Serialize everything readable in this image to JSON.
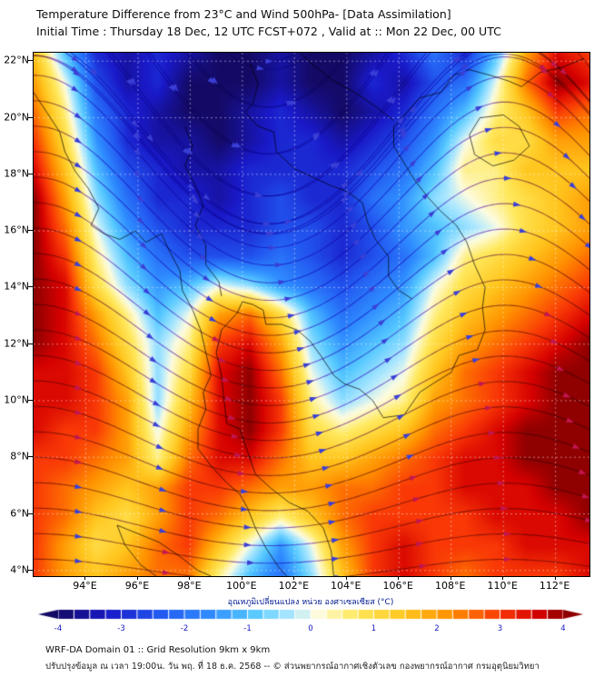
{
  "header": {
    "title": "Temperature Difference from 23°C and Wind 500hPa- [Data Assimilation]",
    "subtitle": "Initial Time : Thursday 18 Dec, 12 UTC FCST+072 , Valid at ::  Mon 22 Dec, 00 UTC"
  },
  "map": {
    "extent": {
      "lon_min": 92.0,
      "lon_max": 113.3,
      "lat_min": 3.8,
      "lat_max": 22.3
    },
    "graticule_step_deg": 2,
    "lat_ticks": [
      {
        "value": 22,
        "label": "22°N"
      },
      {
        "value": 20,
        "label": "20°N"
      },
      {
        "value": 18,
        "label": "18°N"
      },
      {
        "value": 16,
        "label": "16°N"
      },
      {
        "value": 14,
        "label": "14°N"
      },
      {
        "value": 12,
        "label": "12°N"
      },
      {
        "value": 10,
        "label": "10°N"
      },
      {
        "value": 8,
        "label": "8°N"
      },
      {
        "value": 6,
        "label": "6°N"
      },
      {
        "value": 4,
        "label": "4°N"
      }
    ],
    "lon_ticks": [
      {
        "value": 94,
        "label": "94°E"
      },
      {
        "value": 96,
        "label": "96°E"
      },
      {
        "value": 98,
        "label": "98°E"
      },
      {
        "value": 100,
        "label": "100°E"
      },
      {
        "value": 102,
        "label": "102°E"
      },
      {
        "value": 104,
        "label": "104°E"
      },
      {
        "value": 106,
        "label": "106°E"
      },
      {
        "value": 108,
        "label": "108°E"
      },
      {
        "value": 110,
        "label": "110°E"
      },
      {
        "value": 112,
        "label": "112°E"
      }
    ]
  },
  "chart_data": {
    "type": "heatmap",
    "title": "Temperature difference from 23°C (shaded) with 500 hPa wind streamlines",
    "units": "°C",
    "value_range": [
      -4,
      4
    ],
    "grid_lon_range": [
      92.0,
      113.3
    ],
    "grid_lat_range_north_to_south": [
      22.3,
      3.8
    ],
    "temperature_grid_north_to_south": [
      [
        1.5,
        -1.0,
        -3.0,
        -3.5,
        -3.0,
        -3.5,
        -4.0,
        -4.0,
        -3.5,
        -4.0,
        -4.0,
        -3.5,
        -3.0,
        -2.0,
        -3.0,
        -1.0,
        2.0,
        3.5,
        3.0
      ],
      [
        2.0,
        0.0,
        -2.5,
        -3.5,
        -3.0,
        -4.0,
        -4.0,
        -4.0,
        -3.5,
        -4.0,
        -4.0,
        -3.0,
        -3.5,
        -2.5,
        -2.0,
        0.0,
        2.5,
        4.0,
        3.5
      ],
      [
        2.5,
        0.5,
        -2.0,
        -3.0,
        -3.5,
        -4.0,
        -4.0,
        -3.5,
        -3.0,
        -3.5,
        -4.0,
        -3.5,
        -3.0,
        -2.0,
        -1.0,
        0.5,
        1.5,
        3.0,
        2.5
      ],
      [
        3.0,
        1.0,
        -1.5,
        -3.0,
        -3.5,
        -3.5,
        -4.0,
        -3.5,
        -3.0,
        -3.0,
        -3.5,
        -3.0,
        -2.5,
        -1.5,
        0.0,
        1.0,
        1.0,
        2.0,
        2.0
      ],
      [
        3.5,
        1.5,
        -1.0,
        -2.5,
        -3.0,
        -3.5,
        -3.5,
        -3.0,
        -3.0,
        -3.0,
        -3.0,
        -2.5,
        -2.0,
        -1.0,
        0.5,
        0.5,
        1.5,
        1.5,
        1.5
      ],
      [
        4.0,
        2.0,
        -0.5,
        -2.0,
        -3.0,
        -3.0,
        -3.5,
        -3.0,
        -2.5,
        -3.0,
        -3.0,
        -2.0,
        -1.5,
        -0.5,
        0.0,
        0.5,
        1.0,
        1.5,
        2.0
      ],
      [
        4.0,
        2.5,
        0.0,
        -1.5,
        -2.5,
        -3.0,
        -3.0,
        -3.0,
        -2.5,
        -2.5,
        -3.0,
        -2.5,
        -1.5,
        -1.0,
        -0.5,
        0.0,
        1.0,
        1.5,
        2.0
      ],
      [
        4.0,
        3.0,
        0.5,
        -1.0,
        -2.0,
        -2.5,
        -2.5,
        -2.5,
        -2.0,
        -2.5,
        -3.0,
        -2.5,
        -2.0,
        -1.0,
        0.5,
        1.0,
        1.5,
        2.0,
        2.5
      ],
      [
        4.0,
        3.5,
        1.0,
        -0.5,
        -1.5,
        -1.0,
        0.0,
        -0.5,
        -1.5,
        -2.0,
        -2.5,
        -2.0,
        -1.5,
        0.0,
        1.0,
        1.5,
        2.0,
        2.5,
        3.0
      ],
      [
        4.0,
        3.5,
        2.0,
        0.5,
        -1.0,
        0.0,
        2.0,
        2.5,
        1.0,
        -1.0,
        -2.0,
        -1.5,
        -1.0,
        0.5,
        1.5,
        2.0,
        2.5,
        3.0,
        3.5
      ],
      [
        4.0,
        3.5,
        2.5,
        1.0,
        -0.5,
        0.5,
        3.0,
        3.5,
        2.0,
        -0.5,
        -1.5,
        -1.0,
        -0.5,
        1.0,
        2.0,
        2.5,
        3.0,
        3.5,
        4.0
      ],
      [
        3.5,
        3.5,
        3.0,
        1.5,
        -0.5,
        1.0,
        3.5,
        4.0,
        2.5,
        0.0,
        -1.0,
        -0.5,
        0.0,
        1.5,
        2.5,
        3.0,
        3.5,
        4.0,
        4.0
      ],
      [
        3.5,
        3.5,
        3.0,
        2.0,
        -0.5,
        1.5,
        3.5,
        4.0,
        3.0,
        0.5,
        -0.5,
        0.0,
        0.5,
        2.0,
        2.5,
        3.0,
        3.5,
        4.0,
        4.0
      ],
      [
        3.5,
        3.0,
        3.0,
        2.0,
        0.0,
        2.0,
        3.5,
        4.0,
        3.0,
        1.0,
        0.5,
        1.0,
        1.5,
        2.5,
        3.0,
        3.5,
        4.0,
        4.0,
        4.0
      ],
      [
        3.0,
        3.0,
        2.5,
        2.0,
        0.5,
        2.5,
        3.5,
        3.5,
        2.5,
        1.5,
        1.5,
        2.0,
        2.5,
        3.0,
        3.5,
        3.5,
        4.0,
        4.0,
        4.0
      ],
      [
        3.0,
        2.5,
        2.0,
        1.5,
        2.0,
        3.0,
        3.0,
        2.5,
        2.0,
        2.0,
        2.5,
        2.5,
        3.0,
        3.0,
        3.5,
        3.5,
        3.5,
        4.0,
        4.0
      ],
      [
        3.0,
        2.5,
        1.5,
        1.0,
        2.0,
        3.0,
        2.5,
        1.5,
        0.5,
        1.5,
        2.5,
        3.0,
        3.0,
        3.0,
        3.0,
        3.5,
        3.5,
        3.5,
        4.0
      ],
      [
        3.0,
        2.0,
        1.0,
        1.5,
        2.5,
        3.0,
        1.5,
        0.0,
        -1.5,
        0.0,
        2.0,
        3.0,
        3.5,
        3.0,
        3.0,
        3.0,
        3.5,
        3.5,
        3.5
      ],
      [
        3.0,
        2.0,
        1.5,
        2.0,
        2.5,
        2.5,
        0.5,
        -1.0,
        -2.0,
        -0.5,
        1.5,
        3.0,
        3.5,
        3.0,
        2.5,
        3.0,
        3.0,
        3.0,
        3.5
      ]
    ],
    "colormap_stops": [
      {
        "value": -4.0,
        "color": "#140a66"
      },
      {
        "value": -3.2,
        "color": "#1919c8"
      },
      {
        "value": -2.4,
        "color": "#2257f0"
      },
      {
        "value": -1.6,
        "color": "#2f8cff"
      },
      {
        "value": -0.9,
        "color": "#55c8ff"
      },
      {
        "value": -0.3,
        "color": "#aee8ff"
      },
      {
        "value": 0.1,
        "color": "#fdfce0"
      },
      {
        "value": 0.7,
        "color": "#ffe95e"
      },
      {
        "value": 1.5,
        "color": "#ffc61e"
      },
      {
        "value": 2.2,
        "color": "#ff9000"
      },
      {
        "value": 3.0,
        "color": "#f93806"
      },
      {
        "value": 3.6,
        "color": "#d40000"
      },
      {
        "value": 4.0,
        "color": "#8f0000"
      }
    ],
    "wind_streamlines": {
      "level": "500hPa",
      "u_base": 1.0,
      "trough_lon": 101,
      "wavelength_deg": 18,
      "amplitude_base": 0.12,
      "amplitude_per_deg_lat": 0.065,
      "seed_left_lats": [
        4.4,
        5.3,
        6.2,
        7.1,
        8.0,
        8.9,
        9.8,
        10.7,
        11.6,
        12.5,
        13.4,
        14.3,
        15.2,
        16.1,
        17.0,
        17.9,
        18.8,
        19.7,
        20.6,
        21.5,
        22.2
      ],
      "seed_top_lons": [
        93.5,
        95.0,
        96.5,
        98.0,
        99.5,
        102.0,
        104.0,
        105.5,
        107.0,
        108.5,
        110.0,
        111.5,
        112.9
      ],
      "line_color": "#9a6ad8",
      "arrow_color_cold": "#3a3fd6",
      "arrow_color_warm": "#c21652"
    }
  },
  "coastlines": {
    "color": "#000000",
    "paths": [
      [
        [
          92.0,
          20.9
        ],
        [
          92.5,
          20.2
        ],
        [
          93.0,
          19.5
        ],
        [
          93.2,
          18.8
        ],
        [
          93.6,
          18.1
        ],
        [
          94.1,
          17.5
        ],
        [
          94.5,
          16.8
        ],
        [
          94.2,
          16.2
        ],
        [
          94.7,
          15.9
        ],
        [
          95.3,
          15.7
        ],
        [
          95.9,
          16.0
        ],
        [
          96.3,
          15.6
        ],
        [
          96.9,
          15.9
        ],
        [
          97.2,
          15.3
        ],
        [
          97.6,
          14.6
        ],
        [
          97.7,
          13.9
        ],
        [
          98.1,
          13.2
        ],
        [
          98.4,
          12.5
        ],
        [
          98.6,
          11.7
        ],
        [
          98.8,
          10.9
        ],
        [
          98.5,
          10.3
        ],
        [
          98.6,
          9.7
        ],
        [
          98.3,
          9.0
        ],
        [
          98.3,
          8.3
        ],
        [
          98.8,
          7.7
        ],
        [
          99.4,
          7.1
        ],
        [
          99.9,
          6.7
        ],
        [
          100.2,
          6.2
        ],
        [
          100.5,
          5.5
        ],
        [
          100.9,
          4.8
        ],
        [
          101.4,
          4.1
        ],
        [
          101.7,
          3.8
        ]
      ],
      [
        [
          103.5,
          3.8
        ],
        [
          103.4,
          4.7
        ],
        [
          103.1,
          5.5
        ],
        [
          102.5,
          6.1
        ],
        [
          101.8,
          6.4
        ],
        [
          101.1,
          6.9
        ],
        [
          100.5,
          7.4
        ],
        [
          100.2,
          8.2
        ],
        [
          99.9,
          9.0
        ],
        [
          99.4,
          9.2
        ],
        [
          99.3,
          10.0
        ],
        [
          99.2,
          10.9
        ],
        [
          99.0,
          11.7
        ],
        [
          99.2,
          12.5
        ],
        [
          99.8,
          13.1
        ],
        [
          100.0,
          13.5
        ],
        [
          100.4,
          13.4
        ],
        [
          100.8,
          13.2
        ],
        [
          100.9,
          12.7
        ],
        [
          101.5,
          12.7
        ],
        [
          102.1,
          12.5
        ],
        [
          102.6,
          12.1
        ],
        [
          103.0,
          11.6
        ],
        [
          103.5,
          10.9
        ],
        [
          103.9,
          10.6
        ],
        [
          104.5,
          10.4
        ],
        [
          105.0,
          10.0
        ],
        [
          105.4,
          9.4
        ],
        [
          106.2,
          9.5
        ],
        [
          106.8,
          10.3
        ],
        [
          107.3,
          10.6
        ],
        [
          108.0,
          11.0
        ],
        [
          108.3,
          11.6
        ],
        [
          109.0,
          11.8
        ],
        [
          109.3,
          12.5
        ],
        [
          109.2,
          13.3
        ],
        [
          109.3,
          14.0
        ],
        [
          108.9,
          14.8
        ],
        [
          108.6,
          15.6
        ],
        [
          108.2,
          16.2
        ],
        [
          107.6,
          16.7
        ],
        [
          107.1,
          17.2
        ],
        [
          106.6,
          17.8
        ],
        [
          106.2,
          18.4
        ],
        [
          105.8,
          19.0
        ],
        [
          105.8,
          19.7
        ],
        [
          106.3,
          20.2
        ],
        [
          106.8,
          20.7
        ],
        [
          107.6,
          20.9
        ],
        [
          108.1,
          21.5
        ],
        [
          108.7,
          21.7
        ],
        [
          109.5,
          21.5
        ],
        [
          110.2,
          21.3
        ],
        [
          110.7,
          21.1
        ],
        [
          111.4,
          21.6
        ],
        [
          112.3,
          21.8
        ],
        [
          113.1,
          22.1
        ]
      ],
      [
        [
          108.7,
          19.4
        ],
        [
          109.1,
          20.0
        ],
        [
          110.0,
          20.1
        ],
        [
          110.6,
          19.7
        ],
        [
          111.0,
          19.0
        ],
        [
          110.4,
          18.5
        ],
        [
          109.6,
          18.3
        ],
        [
          108.9,
          18.7
        ],
        [
          108.7,
          19.4
        ]
      ],
      [
        [
          95.2,
          5.6
        ],
        [
          96.0,
          5.3
        ],
        [
          96.8,
          5.0
        ],
        [
          97.6,
          4.5
        ],
        [
          98.3,
          4.0
        ],
        [
          98.8,
          3.8
        ]
      ],
      [
        [
          95.2,
          5.6
        ],
        [
          95.5,
          4.9
        ],
        [
          96.1,
          4.2
        ],
        [
          96.7,
          3.8
        ]
      ],
      [
        [
          100.3,
          21.9
        ],
        [
          100.6,
          21.2
        ],
        [
          100.4,
          20.5
        ],
        [
          100.1,
          20.2
        ],
        [
          100.6,
          19.7
        ],
        [
          101.2,
          19.5
        ],
        [
          101.3,
          18.8
        ],
        [
          102.0,
          18.2
        ],
        [
          102.7,
          17.9
        ],
        [
          103.4,
          17.6
        ],
        [
          104.0,
          17.4
        ],
        [
          104.6,
          17.0
        ],
        [
          104.8,
          16.3
        ],
        [
          105.1,
          15.7
        ],
        [
          105.6,
          15.1
        ],
        [
          105.6,
          14.4
        ],
        [
          106.0,
          13.9
        ],
        [
          106.5,
          13.6
        ]
      ],
      [
        [
          97.8,
          19.7
        ],
        [
          98.1,
          19.0
        ],
        [
          97.8,
          18.3
        ],
        [
          98.2,
          17.6
        ],
        [
          98.5,
          16.9
        ],
        [
          98.2,
          16.2
        ],
        [
          98.6,
          15.5
        ],
        [
          98.6,
          14.8
        ],
        [
          99.1,
          14.2
        ],
        [
          99.2,
          13.7
        ]
      ],
      [
        [
          102.2,
          22.3
        ],
        [
          102.8,
          21.8
        ],
        [
          103.5,
          21.3
        ],
        [
          104.3,
          20.9
        ],
        [
          105.1,
          20.4
        ],
        [
          105.8,
          19.9
        ]
      ]
    ]
  },
  "colorbar": {
    "title": "อุณหภูมิเปลี่ยนแปลง หน่วย องศาเซลเซียส (°C)",
    "min": -4,
    "max": 4,
    "segment_step": 0.25,
    "ticks": [
      {
        "value": -4,
        "label": "-4"
      },
      {
        "value": -3,
        "label": "-3"
      },
      {
        "value": -2,
        "label": "-2"
      },
      {
        "value": -1,
        "label": "-1"
      },
      {
        "value": 0,
        "label": "0"
      },
      {
        "value": 1,
        "label": "1"
      },
      {
        "value": 2,
        "label": "2"
      },
      {
        "value": 3,
        "label": "3"
      },
      {
        "value": 4,
        "label": "4"
      }
    ]
  },
  "footer": {
    "line1": "WRF-DA Domain 01 :: Grid Resolution 9km x 9km",
    "line2": "ปรับปรุงข้อมูล ณ เวลา 19:00น. วัน พฤ. ที่ 18 ธ.ค. 2568 -- © ส่วนพยากรณ์อากาศเชิงตัวเลข กองพยากรณ์อากาศ กรมอุตุนิยมวิทยา"
  }
}
